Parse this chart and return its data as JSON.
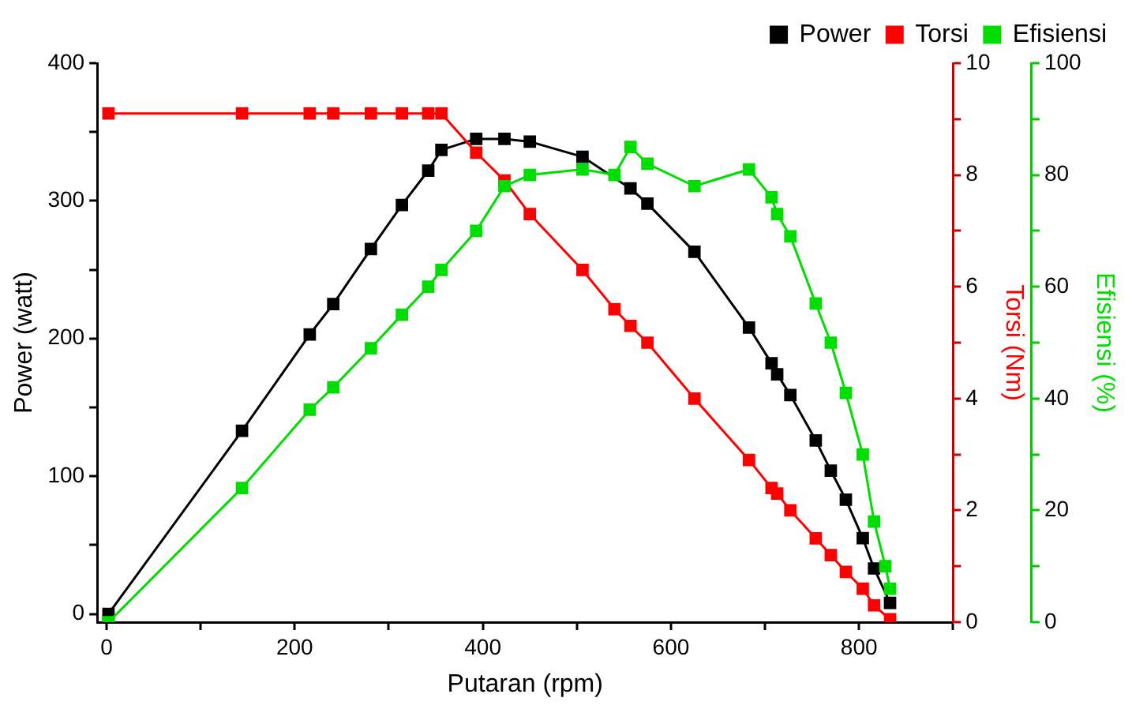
{
  "chart_data": {
    "type": "line",
    "xlabel": "Putaran (rpm)",
    "ylabel": "Power (watt)",
    "y2label": "Torsi (Nm)",
    "y3label": "Efisiensi (%)",
    "x": [
      2,
      144,
      216,
      241,
      281,
      314,
      342,
      356,
      393,
      423,
      450,
      506,
      540,
      557,
      575,
      625,
      683,
      707,
      713,
      727,
      754,
      770,
      786,
      804,
      816,
      828,
      833
    ],
    "series": [
      {
        "name": "Power",
        "color": "#000000",
        "values": [
          0,
          133,
          203,
          225,
          265,
          297,
          322,
          337,
          345,
          345,
          343,
          332,
          null,
          309,
          298,
          263,
          208,
          182,
          174,
          159,
          126,
          104,
          83,
          55,
          33,
          null,
          8
        ]
      },
      {
        "name": "Torsi",
        "color": "#ff0000",
        "axis": "y2",
        "values": [
          9.1,
          9.1,
          9.1,
          9.1,
          9.1,
          9.1,
          9.1,
          9.1,
          8.4,
          7.9,
          7.3,
          6.3,
          5.6,
          5.3,
          5.0,
          4.0,
          2.9,
          2.4,
          2.3,
          2.0,
          1.5,
          1.2,
          0.9,
          0.6,
          0.3,
          null,
          0.05
        ]
      },
      {
        "name": "Efisiensi",
        "color": "#00dd00",
        "axis": "y3",
        "values": [
          0,
          24,
          38,
          42,
          49,
          55,
          60,
          63,
          70,
          78,
          80,
          81,
          80,
          85,
          82,
          78,
          81,
          76,
          73,
          69,
          57,
          50,
          41,
          30,
          18,
          10,
          6
        ]
      }
    ],
    "xlim": [
      -10,
      900
    ],
    "xticks": [
      0,
      {
        "value": 100,
        "label": null
      },
      200,
      {
        "value": 300,
        "label": null
      },
      400,
      {
        "value": 500,
        "label": null
      },
      600,
      {
        "value": 700,
        "label": null
      },
      800,
      {
        "value": 900,
        "label": null
      }
    ],
    "ylim": [
      -6,
      400
    ],
    "yticks": [
      0,
      {
        "value": 50,
        "label": null
      },
      100,
      {
        "value": 150,
        "label": null
      },
      200,
      {
        "value": 250,
        "label": null
      },
      300,
      {
        "value": 350,
        "label": null
      },
      400
    ],
    "y2lim": [
      0,
      10
    ],
    "y2ticks": [
      0,
      {
        "value": 1,
        "label": null
      },
      2,
      {
        "value": 3,
        "label": null
      },
      4,
      {
        "value": 5,
        "label": null
      },
      6,
      {
        "value": 7,
        "label": null
      },
      8,
      {
        "value": 9,
        "label": null
      },
      10
    ],
    "y3lim": [
      0,
      100
    ],
    "y3ticks": [
      0,
      {
        "value": 10,
        "label": null
      },
      20,
      {
        "value": 30,
        "label": null
      },
      40,
      {
        "value": 50,
        "label": null
      },
      60,
      {
        "value": 70,
        "label": null
      },
      80,
      {
        "value": 90,
        "label": null
      },
      100
    ],
    "grid": false,
    "legend": "top right",
    "marker": "square",
    "line_style": "solid"
  }
}
